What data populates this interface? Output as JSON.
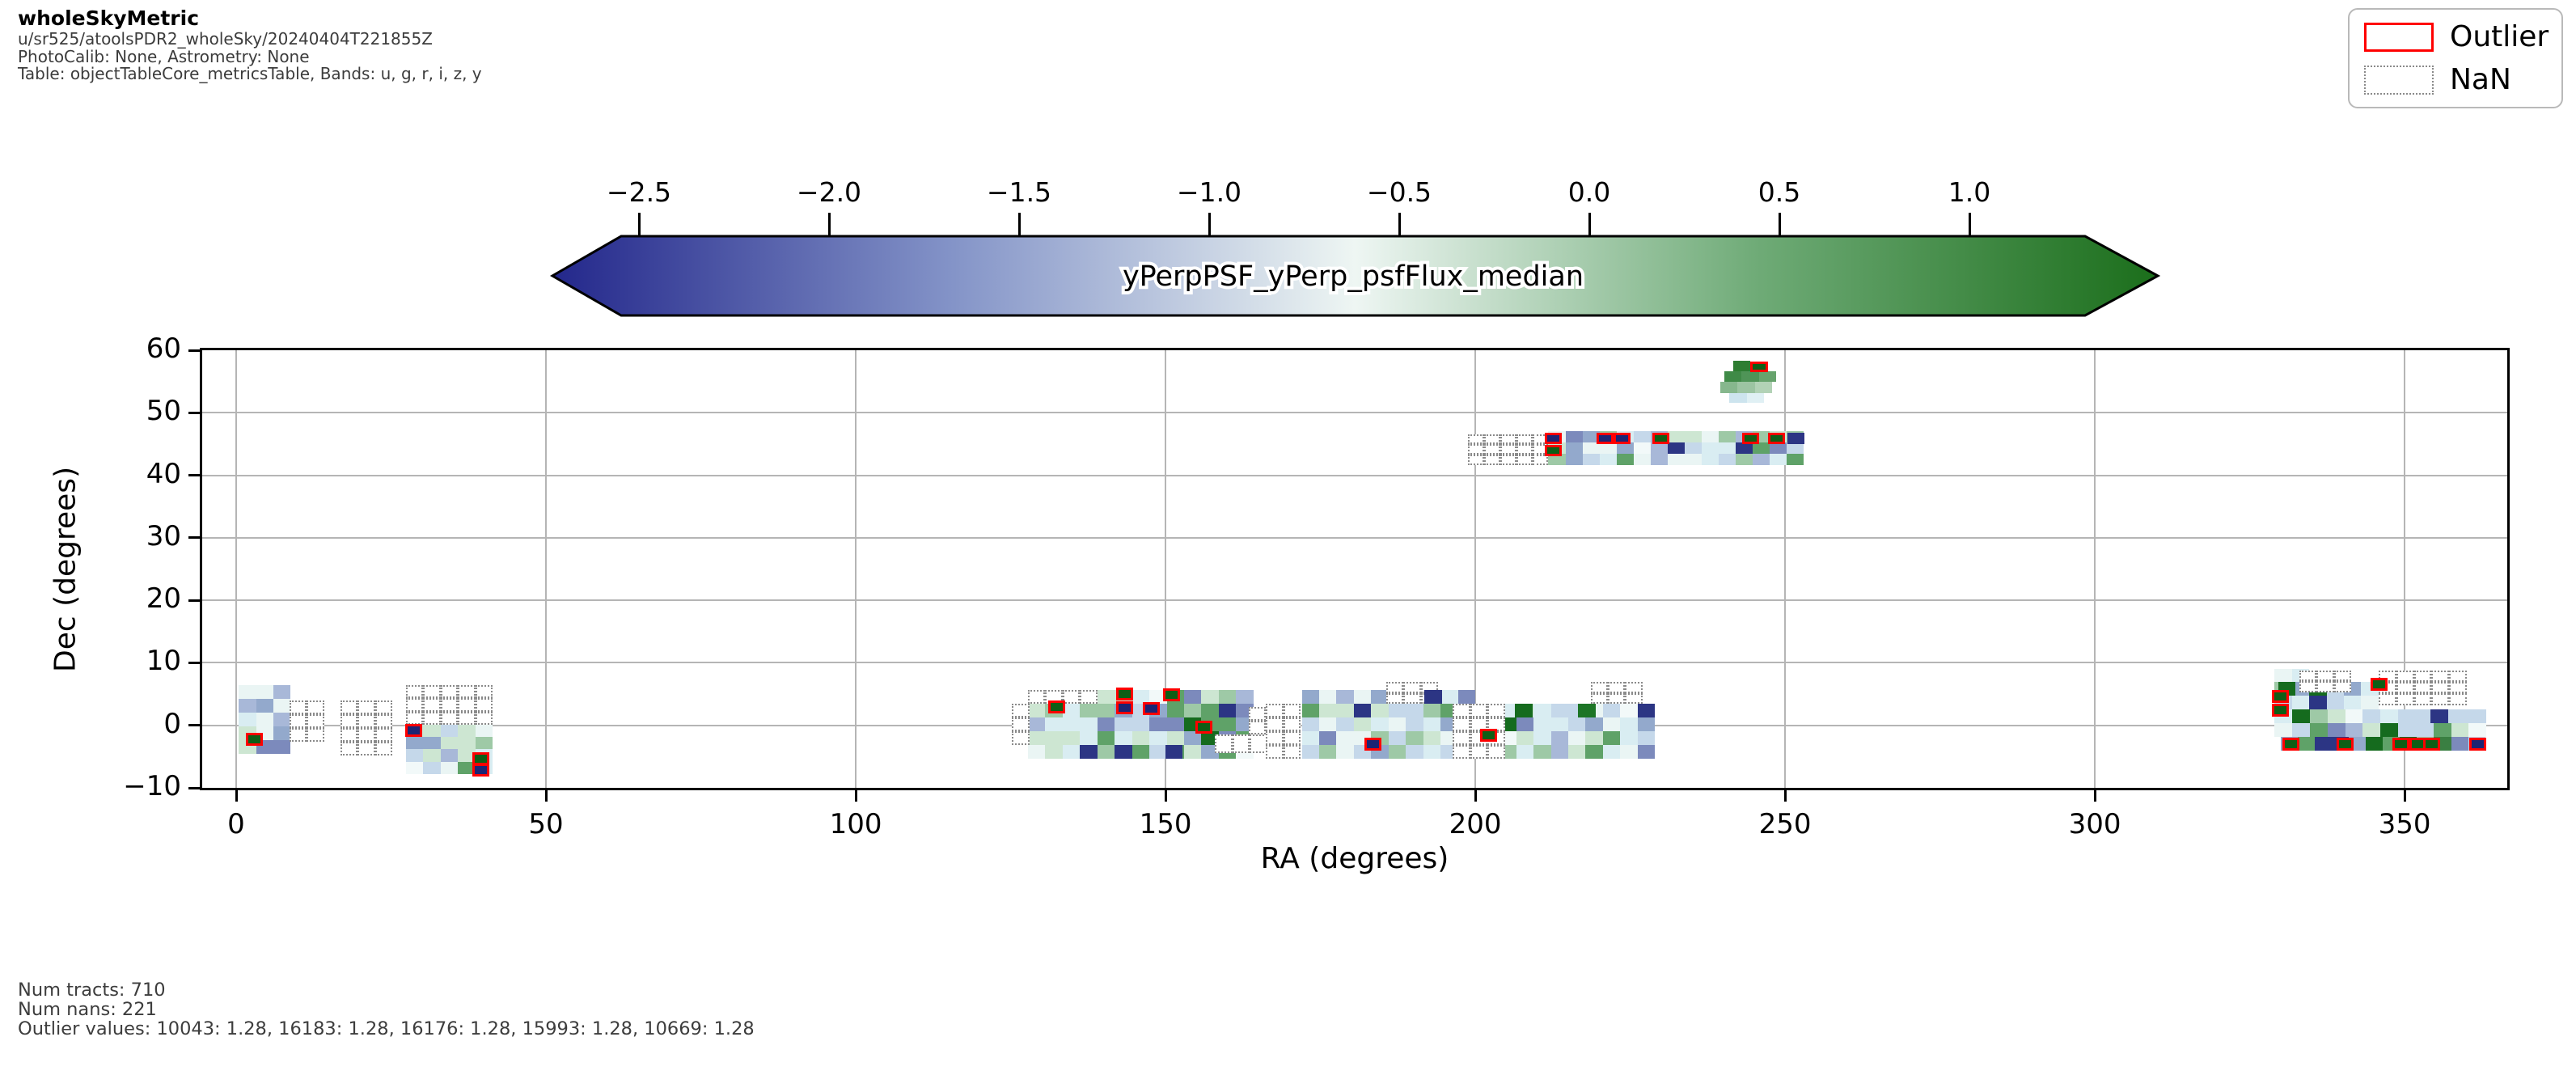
{
  "header": {
    "title": "wholeSkyMetric",
    "run": "u/sr525/atoolsPDR2_wholeSky/20240404T221855Z",
    "calib": "PhotoCalib: None, Astrometry: None",
    "table": "Table: objectTableCore_metricsTable, Bands: u, g, r, i, z, y"
  },
  "legend": {
    "items": [
      {
        "label": "Outlier",
        "swatch": "red-solid-rect"
      },
      {
        "label": "NaN",
        "swatch": "gray-dotted-rect"
      }
    ],
    "outlier_color": "#ff0000",
    "nan_border_color": "#8a8a8a"
  },
  "stats": {
    "line1": "Num tracts: 710",
    "line2": "Num nans: 221",
    "line3": "Outlier values: 10043: 1.28, 16183: 1.28, 16176: 1.28, 15993: 1.28, 10669: 1.28"
  },
  "axes": {
    "xlabel": "RA (degrees)",
    "ylabel": "Dec (degrees)",
    "x_tick_values": [
      0,
      50,
      100,
      150,
      200,
      250,
      300,
      350
    ],
    "x_tick_labels": [
      "0",
      "50",
      "100",
      "150",
      "200",
      "250",
      "300",
      "350"
    ],
    "y_tick_values": [
      -10,
      0,
      10,
      20,
      30,
      40,
      50,
      60
    ],
    "y_tick_labels": [
      "−10",
      "0",
      "10",
      "20",
      "30",
      "40",
      "50",
      "60"
    ],
    "x_range": [
      -5.5,
      366.5
    ],
    "y_range": [
      -10,
      60
    ]
  },
  "chart_data": {
    "type": "heatmap",
    "title": "wholeSkyMetric",
    "value_label": "yPerpPSF_yPerp_psfFlux_median",
    "num_tracts": 710,
    "num_nans": 221,
    "outlier_values": [
      {
        "tract": 10043,
        "value": 1.28
      },
      {
        "tract": 16183,
        "value": 1.28
      },
      {
        "tract": 16176,
        "value": 1.28
      },
      {
        "tract": 15993,
        "value": 1.28
      },
      {
        "tract": 10669,
        "value": 1.28
      }
    ],
    "colorbar": {
      "tick_values": [
        -2.5,
        -2.0,
        -1.5,
        -1.0,
        -0.5,
        0.0,
        0.5,
        1.0
      ],
      "tick_labels": [
        "−2.5",
        "−2.0",
        "−1.5",
        "−1.0",
        "−0.5",
        "0.0",
        "0.5",
        "1.0"
      ],
      "min_color": "#23278b",
      "mid_color": "#eef6f3",
      "max_color": "#1b6e1b",
      "edge_color": "#000000"
    },
    "palette": {
      "base": [
        [
          "#d9edf2",
          18
        ],
        [
          "#c5d8ea",
          14
        ],
        [
          "#cde6d2",
          14
        ],
        [
          "#eaf5f4",
          10
        ],
        [
          "#a8b8d8",
          8
        ],
        [
          "#7c8abc",
          7
        ],
        [
          "#9ec9a6",
          8
        ],
        [
          "#5fa268",
          5
        ],
        [
          "#93a9cc",
          6
        ],
        [
          "#f2f9f9",
          4
        ],
        [
          "#2c3584",
          3
        ],
        [
          "#156b1e",
          3
        ]
      ],
      "dark": [
        [
          "#9ec9a6",
          16
        ],
        [
          "#5fa268",
          14
        ],
        [
          "#156b1e",
          12
        ],
        [
          "#7c8abc",
          12
        ],
        [
          "#2c3584",
          10
        ],
        [
          "#93a9cc",
          8
        ],
        [
          "#cde6d2",
          10
        ],
        [
          "#c5d8ea",
          8
        ],
        [
          "#3a7f42",
          10
        ]
      ],
      "soft": [
        [
          "#d9edf2",
          30
        ],
        [
          "#cde6d2",
          25
        ],
        [
          "#eaf5f4",
          25
        ],
        [
          "#c5d8ea",
          20
        ]
      ]
    },
    "outlier_fill": {
      "green": "#0e5e16",
      "navy": "#1d2473"
    },
    "clusters": [
      {
        "id": "A1",
        "kind": "data",
        "ra0": 0.4,
        "decTop": 6.4,
        "cols": 3,
        "rows": 5,
        "seed": 11
      },
      {
        "id": "A4d",
        "kind": "data",
        "ra0": 27.4,
        "decTop": 0.2,
        "cols": 5,
        "rows": 4,
        "ch": 2.0,
        "seed": 21
      },
      {
        "id": "M1",
        "kind": "data",
        "ra0": 127.8,
        "decTop": 5.6,
        "cols": 13,
        "rows": 5,
        "seed": 31
      },
      {
        "id": "M2",
        "kind": "data",
        "ra0": 172.0,
        "decTop": 5.6,
        "cols": 10,
        "rows": 5,
        "seed": 41
      },
      {
        "id": "M3",
        "kind": "data",
        "ra0": 201.0,
        "decTop": 3.4,
        "cols": 10,
        "rows": 4,
        "seed": 51
      },
      {
        "id": "N2",
        "kind": "data",
        "ra0": 211.8,
        "decTop": 47.0,
        "cols": 15,
        "rows": 3,
        "cw": 2.75,
        "ch": 1.8,
        "seed": 61
      },
      {
        "id": "R0",
        "kind": "data",
        "ra0": 329.0,
        "decTop": 9.0,
        "cols": 2,
        "rows": 1,
        "ch": 2.0,
        "seed": 71,
        "tone": "soft"
      },
      {
        "id": "R1",
        "kind": "data",
        "ra0": 329.0,
        "decTop": 7.0,
        "cols": 6,
        "rows": 2,
        "seed": 73
      },
      {
        "id": "R3",
        "kind": "data",
        "ra0": 329.0,
        "decTop": 2.6,
        "cols": 12,
        "rows": 2,
        "cw": 2.85,
        "seed": 79
      },
      {
        "id": "R4",
        "kind": "data",
        "ra0": 330.0,
        "decTop": -1.8,
        "cols": 12,
        "rows": 1,
        "cw": 2.75,
        "tone": "dark",
        "seed": 83
      },
      {
        "id": "A2",
        "kind": "nan",
        "ra0": 8.6,
        "decTop": 4.0,
        "cols": 2,
        "rows": 3
      },
      {
        "id": "A3",
        "kind": "nan",
        "ra0": 16.8,
        "decTop": 4.0,
        "cols": 3,
        "rows": 4
      },
      {
        "id": "A4n",
        "kind": "nan",
        "ra0": 27.4,
        "decTop": 6.4,
        "cols": 5,
        "rows": 3,
        "ch": 2.1
      },
      {
        "id": "M1a",
        "kind": "nan",
        "ra0": 127.8,
        "decTop": 5.6,
        "cols": 4,
        "rows": 1
      },
      {
        "id": "M1b",
        "kind": "nan",
        "ra0": 125.2,
        "decTop": 3.4,
        "cols": 1,
        "rows": 3
      },
      {
        "id": "M1c1",
        "kind": "nan",
        "ra0": 163.4,
        "decTop": 2.9,
        "cols": 2,
        "rows": 2
      },
      {
        "id": "M1c2",
        "kind": "nan",
        "ra0": 158.0,
        "decTop": -1.5,
        "cols": 4,
        "rows": 1,
        "ch": 2.9
      },
      {
        "id": "M2a",
        "kind": "nan",
        "ra0": 166.2,
        "decTop": 3.4,
        "cols": 2,
        "rows": 4
      },
      {
        "id": "M2b",
        "kind": "nan",
        "ra0": 185.6,
        "decTop": 7.0,
        "cols": 3,
        "rows": 2,
        "ch": 1.8
      },
      {
        "id": "M3a",
        "kind": "nan",
        "ra0": 196.4,
        "decTop": 3.4,
        "cols": 3,
        "rows": 4
      },
      {
        "id": "M3b",
        "kind": "nan",
        "ra0": 218.6,
        "decTop": 7.0,
        "cols": 3,
        "rows": 2,
        "ch": 1.8
      },
      {
        "id": "N1",
        "kind": "nan",
        "ra0": 198.8,
        "decTop": 46.6,
        "cols": 5,
        "rows": 3,
        "cw": 2.6,
        "ch": 1.65
      },
      {
        "id": "R1n",
        "kind": "nan",
        "ra0": 333.0,
        "decTop": 8.8,
        "cols": 3,
        "rows": 2,
        "ch": 1.75
      },
      {
        "id": "R2n",
        "kind": "nan",
        "ra0": 345.8,
        "decTop": 8.8,
        "cols": 5,
        "rows": 3,
        "cw": 2.85,
        "ch": 1.85
      }
    ],
    "cells": [
      [
        241.6,
        58.3,
        2.8,
        1.7,
        "#2e7d32"
      ],
      [
        240.2,
        56.6,
        2.8,
        1.7,
        "#3f8a47"
      ],
      [
        243.0,
        56.6,
        2.8,
        1.7,
        "#4f9457"
      ],
      [
        245.8,
        56.6,
        2.8,
        1.7,
        "#67a36d"
      ],
      [
        239.5,
        54.9,
        2.8,
        1.7,
        "#86b78d"
      ],
      [
        242.3,
        54.9,
        2.8,
        1.7,
        "#9cc4a2"
      ],
      [
        245.1,
        54.9,
        2.8,
        1.7,
        "#b2d2b6"
      ],
      [
        241.0,
        53.2,
        2.8,
        1.6,
        "#cde4ee"
      ],
      [
        243.8,
        53.2,
        2.8,
        1.6,
        "#e0f0f4"
      ],
      [
        191.8,
        5.6,
        2.8,
        2.2,
        "#2c3584"
      ],
      [
        206.4,
        3.4,
        2.8,
        2.2,
        "#156b1e"
      ],
      [
        216.6,
        3.4,
        2.8,
        2.2,
        "#1d7526"
      ],
      [
        354.2,
        2.6,
        2.85,
        2.2,
        "#2c3584"
      ],
      [
        329.6,
        7.0,
        2.8,
        2.2,
        "#156b1e"
      ],
      [
        250.4,
        46.8,
        2.75,
        1.8,
        "#2c3584"
      ],
      [
        150.0,
        -3.2,
        2.8,
        2.2,
        "#2c3584"
      ]
    ],
    "outliers": [
      [
        2.9,
        -2.2,
        "green"
      ],
      [
        28.6,
        -0.8,
        "navy"
      ],
      [
        39.5,
        -5.3,
        "green"
      ],
      [
        39.5,
        -7.2,
        "navy"
      ],
      [
        132.4,
        2.9,
        "green"
      ],
      [
        143.4,
        5.0,
        "green"
      ],
      [
        143.4,
        2.8,
        "navy"
      ],
      [
        147.7,
        2.7,
        "navy"
      ],
      [
        151.0,
        4.9,
        "green"
      ],
      [
        156.2,
        -0.3,
        "green"
      ],
      [
        183.5,
        -3.0,
        "navy"
      ],
      [
        202.1,
        -1.6,
        "green"
      ],
      [
        212.6,
        45.9,
        "navy",
        2.75,
        1.8
      ],
      [
        221.0,
        45.9,
        "navy",
        2.75,
        1.8
      ],
      [
        223.7,
        45.9,
        "navy",
        2.75,
        1.8
      ],
      [
        230.0,
        45.9,
        "green",
        2.75,
        1.8
      ],
      [
        244.4,
        45.9,
        "green",
        2.75,
        1.8
      ],
      [
        248.6,
        45.9,
        "green",
        2.75,
        1.8
      ],
      [
        212.6,
        44.0,
        "green",
        2.75,
        1.8
      ],
      [
        245.8,
        57.4,
        "green",
        2.8,
        1.7
      ],
      [
        345.9,
        6.6,
        "green"
      ],
      [
        329.9,
        4.6,
        "green"
      ],
      [
        329.9,
        2.4,
        "green"
      ],
      [
        331.6,
        -3.0,
        "green",
        2.75,
        2.0
      ],
      [
        340.4,
        -3.0,
        "green",
        2.75,
        2.0
      ],
      [
        349.4,
        -3.0,
        "green",
        2.75,
        2.0
      ],
      [
        352.1,
        -3.0,
        "green",
        2.75,
        2.0
      ],
      [
        354.3,
        -3.0,
        "green",
        2.75,
        2.0
      ],
      [
        361.8,
        -3.0,
        "navy",
        2.75,
        2.0
      ]
    ]
  }
}
